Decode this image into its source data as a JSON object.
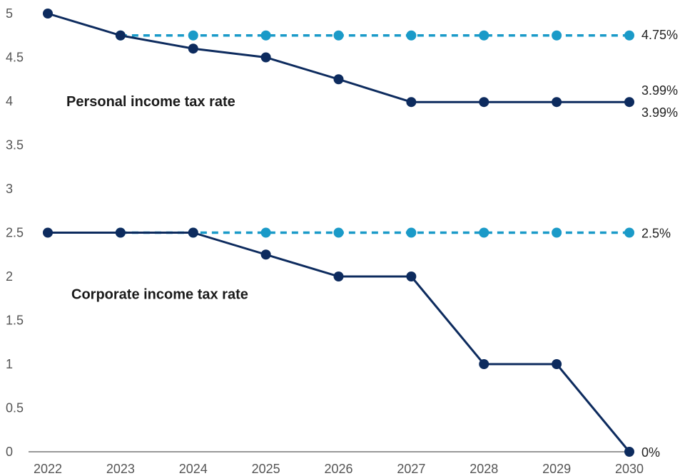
{
  "chart_data": {
    "type": "line",
    "x": [
      "2022",
      "2023",
      "2024",
      "2025",
      "2026",
      "2027",
      "2028",
      "2029",
      "2030"
    ],
    "ylim": [
      0,
      5
    ],
    "yticks": [
      "0",
      "0.5",
      "1",
      "1.5",
      "2",
      "2.5",
      "3",
      "3.5",
      "4",
      "4.5",
      "5"
    ],
    "grid": false,
    "series": [
      {
        "values": [
          null,
          4.75,
          4.75,
          4.75,
          4.75,
          4.75,
          4.75,
          4.75,
          4.75
        ],
        "color": "#1a9ac8",
        "dashed": true
      },
      {
        "values": [
          null,
          2.5,
          2.5,
          2.5,
          2.5,
          2.5,
          2.5,
          2.5,
          2.5
        ],
        "color": "#1a9ac8",
        "dashed": true
      },
      {
        "values": [
          5,
          4.75,
          4.6,
          4.5,
          4.25,
          3.99,
          3.99,
          3.99,
          3.99
        ],
        "color": "#0d2b5e",
        "dashed": false
      },
      {
        "values": [
          2.5,
          2.5,
          2.5,
          2.25,
          2,
          2,
          1,
          1,
          0
        ],
        "color": "#0d2b5e",
        "dashed": false
      }
    ],
    "end_labels": [
      {
        "text": "4.75%",
        "value": 4.75
      },
      {
        "text": "3.99%",
        "value": 3.99
      },
      {
        "text": "3.99%",
        "value": 3.99
      },
      {
        "text": "2.5%",
        "value": 2.5
      },
      {
        "text": "0%",
        "value": 0
      }
    ],
    "annotations": [
      {
        "text": "Personal income tax rate",
        "x": "2022",
        "y": 4
      },
      {
        "text": "Corporate income tax rate",
        "x": "2022",
        "y": 1.8
      }
    ]
  }
}
